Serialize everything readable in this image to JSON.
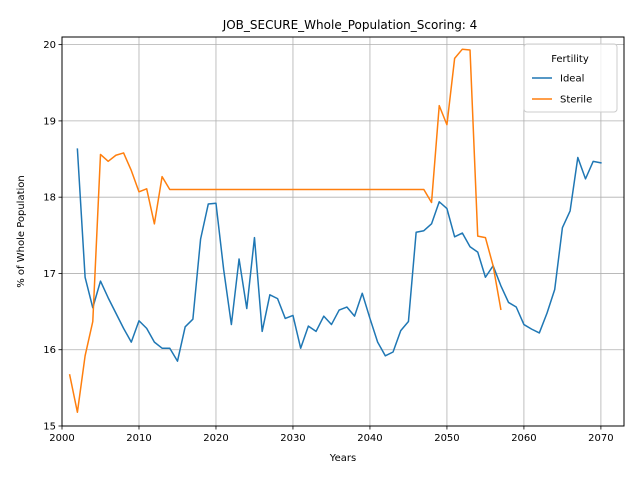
{
  "chart_data": {
    "type": "line",
    "title": "JOB_SECURE_Whole_Population_Scoring: 4",
    "xlabel": "Years",
    "ylabel": "% of Whole Population",
    "xlim": [
      2000,
      2073
    ],
    "ylim": [
      15.0,
      20.1
    ],
    "xticks": [
      2000,
      2010,
      2020,
      2030,
      2040,
      2050,
      2060,
      2070
    ],
    "yticks": [
      15,
      16,
      17,
      18,
      19,
      20
    ],
    "grid": true,
    "legend": {
      "title": "Fertility",
      "placement": "top-right"
    },
    "series": [
      {
        "name": "Ideal",
        "color": "#1f77b4",
        "x": [
          2002,
          2003,
          2004,
          2005,
          2006,
          2007,
          2008,
          2009,
          2010,
          2011,
          2012,
          2013,
          2014,
          2015,
          2016,
          2017,
          2018,
          2019,
          2020,
          2021,
          2022,
          2023,
          2024,
          2025,
          2026,
          2027,
          2028,
          2029,
          2030,
          2031,
          2032,
          2033,
          2034,
          2035,
          2036,
          2037,
          2038,
          2039,
          2040,
          2041,
          2042,
          2043,
          2044,
          2045,
          2046,
          2047,
          2048,
          2049,
          2050,
          2051,
          2052,
          2053,
          2054,
          2055,
          2056,
          2057,
          2058,
          2059,
          2060,
          2061,
          2062,
          2063,
          2064,
          2065,
          2066,
          2067,
          2068,
          2069,
          2070
        ],
        "y": [
          18.63,
          16.95,
          16.55,
          16.9,
          16.68,
          16.48,
          16.28,
          16.1,
          16.38,
          16.28,
          16.1,
          16.02,
          16.02,
          15.85,
          16.3,
          16.4,
          17.45,
          17.91,
          17.92,
          17.05,
          16.33,
          17.19,
          16.54,
          17.47,
          16.24,
          16.72,
          16.67,
          16.41,
          16.45,
          16.02,
          16.31,
          16.24,
          16.44,
          16.33,
          16.52,
          16.56,
          16.44,
          16.74,
          16.41,
          16.1,
          15.92,
          15.97,
          16.25,
          16.37,
          17.54,
          17.56,
          17.65,
          17.94,
          17.85,
          17.48,
          17.53,
          17.35,
          17.28,
          16.95,
          17.1,
          16.84,
          16.62,
          16.56,
          16.33,
          16.27,
          16.22,
          16.48,
          16.79,
          17.6,
          17.82,
          18.52,
          18.24,
          18.47,
          18.45
        ]
      },
      {
        "name": "Sterile",
        "color": "#ff7f0e",
        "x": [
          2001,
          2002,
          2003,
          2004,
          2005,
          2006,
          2007,
          2008,
          2009,
          2010,
          2011,
          2012,
          2013,
          2014,
          2015,
          2016,
          2017,
          2018,
          2019,
          2020,
          2021,
          2022,
          2023,
          2024,
          2025,
          2026,
          2027,
          2028,
          2029,
          2030,
          2031,
          2032,
          2033,
          2034,
          2035,
          2036,
          2037,
          2038,
          2039,
          2040,
          2041,
          2042,
          2043,
          2044,
          2045,
          2046,
          2047,
          2048,
          2049,
          2050,
          2051,
          2052,
          2053,
          2054,
          2055,
          2056,
          2057
        ],
        "y": [
          15.67,
          15.18,
          15.92,
          16.37,
          18.56,
          18.47,
          18.55,
          18.58,
          18.35,
          18.07,
          18.11,
          17.65,
          18.27,
          18.1,
          18.1,
          18.1,
          18.1,
          18.1,
          18.1,
          18.1,
          18.1,
          18.1,
          18.1,
          18.1,
          18.1,
          18.1,
          18.1,
          18.1,
          18.1,
          18.1,
          18.1,
          18.1,
          18.1,
          18.1,
          18.1,
          18.1,
          18.1,
          18.1,
          18.1,
          18.1,
          18.1,
          18.1,
          18.1,
          18.1,
          18.1,
          18.1,
          18.1,
          17.93,
          19.2,
          18.95,
          19.82,
          19.94,
          19.93,
          17.49,
          17.47,
          17.1,
          16.53
        ]
      }
    ]
  }
}
